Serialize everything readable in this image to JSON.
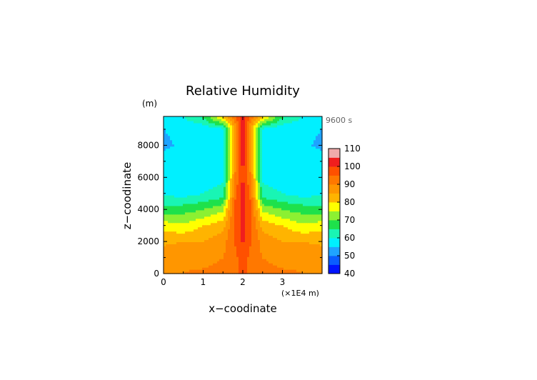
{
  "chart_data": {
    "type": "heatmap",
    "title": "Relative Humidity",
    "time_label": "9600 s",
    "xlabel": "x−coodinate",
    "x_unit": "(×1E4 m)",
    "ylabel": "z−coodinate",
    "y_unit": "(m)",
    "xlim": [
      0,
      4
    ],
    "ylim": [
      0,
      9800
    ],
    "x_ticks": [
      "0",
      "1",
      "2",
      "3"
    ],
    "y_ticks": [
      "0",
      "2000",
      "4000",
      "6000",
      "8000"
    ],
    "colorbar": {
      "min": 40,
      "max": 110,
      "tick_labels": [
        "40",
        "50",
        "60",
        "70",
        "80",
        "90",
        "100",
        "110"
      ]
    },
    "contour_intervals": [
      {
        "from": 40,
        "to": 45,
        "color": "#0014ff"
      },
      {
        "from": 45,
        "to": 50,
        "color": "#0a5cff"
      },
      {
        "from": 50,
        "to": 55,
        "color": "#1fa3ff"
      },
      {
        "from": 55,
        "to": 60,
        "color": "#00f0ff"
      },
      {
        "from": 60,
        "to": 65,
        "color": "#19f5b4"
      },
      {
        "from": 65,
        "to": 70,
        "color": "#1ee14b"
      },
      {
        "from": 70,
        "to": 75,
        "color": "#8cf032"
      },
      {
        "from": 75,
        "to": 80,
        "color": "#ffff00"
      },
      {
        "from": 80,
        "to": 85,
        "color": "#ffb400"
      },
      {
        "from": 85,
        "to": 90,
        "color": "#ff9600"
      },
      {
        "from": 90,
        "to": 95,
        "color": "#ff7800"
      },
      {
        "from": 95,
        "to": 100,
        "color": "#ff5000"
      },
      {
        "from": 100,
        "to": 105,
        "color": "#f01e1e"
      },
      {
        "from": 105,
        "to": 110,
        "color": "#f0aaaa"
      }
    ],
    "field": {
      "x": [
        0,
        0.5,
        1.0,
        1.5,
        1.8,
        2.0,
        2.2,
        2.5,
        3.0,
        3.5,
        4.0
      ],
      "z": [
        0,
        1000,
        2000,
        3000,
        4000,
        5000,
        6000,
        7000,
        8000,
        9000,
        9800
      ],
      "values": [
        [
          90,
          90,
          91,
          92,
          94,
          96,
          94,
          92,
          91,
          90,
          90
        ],
        [
          88,
          89,
          88,
          90,
          94,
          97,
          94,
          90,
          88,
          89,
          88
        ],
        [
          84,
          85,
          85,
          88,
          95,
          101,
          95,
          88,
          85,
          85,
          84
        ],
        [
          78,
          76,
          80,
          83,
          96,
          102,
          96,
          83,
          80,
          76,
          78
        ],
        [
          67,
          68,
          70,
          74,
          96,
          102,
          96,
          74,
          70,
          68,
          67
        ],
        [
          59,
          58,
          60,
          62,
          94,
          102,
          94,
          62,
          60,
          58,
          59
        ],
        [
          57,
          56,
          58,
          59,
          90,
          101,
          90,
          59,
          58,
          56,
          57
        ],
        [
          57,
          58,
          59,
          57,
          88,
          102,
          88,
          57,
          59,
          58,
          57
        ],
        [
          54,
          56,
          57,
          59,
          86,
          103,
          86,
          59,
          57,
          56,
          54
        ],
        [
          55,
          56,
          56,
          58,
          84,
          103,
          84,
          58,
          56,
          56,
          55
        ],
        [
          58,
          60,
          66,
          82,
          94,
          104,
          94,
          82,
          66,
          60,
          58
        ]
      ]
    }
  }
}
